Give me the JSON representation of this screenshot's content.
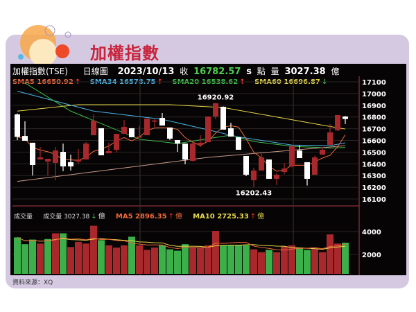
{
  "title": "加權指數",
  "header": {
    "name": "加權指數(TSE)",
    "period": "日線圖",
    "date": "2023/10/13",
    "close_label": "收",
    "close": "16782.57",
    "s": "s",
    "points_label": "點",
    "volume_label": "量",
    "volume": "3027.38",
    "volume_unit": "億"
  },
  "legend": [
    {
      "label": "SMA5 16650.92",
      "arrow": "↑",
      "color": "#f06a3a",
      "arrow_color": "#ff3030"
    },
    {
      "label": "SMA34 16578.75",
      "arrow": "↑",
      "color": "#4ab4e6",
      "arrow_color": "#ff3030"
    },
    {
      "label": "SMA20 16538.62",
      "arrow": "↑",
      "color": "#3cc04a",
      "arrow_color": "#ff3030"
    },
    {
      "label": "SMA60 16696.87",
      "arrow": "↓",
      "color": "#e6d84a",
      "arrow_color": "#3cc04a"
    }
  ],
  "volume_legend": {
    "title": "成交量",
    "vol_label": "成交量 3027.38",
    "vol_arrow": "↓",
    "unit": "億",
    "ma5_label": "MA5 2896.35",
    "ma5_arrow": "↑",
    "ma10_label": "MA10 2725.33",
    "ma10_arrow": "↑"
  },
  "source": "資料來源：XQ",
  "chart_data": [
    {
      "type": "candlestick",
      "ylim": [
        16050,
        17150
      ],
      "yticks": [
        17100,
        17000,
        16900,
        16800,
        16700,
        16600,
        16500,
        16400,
        16300,
        16200,
        16100
      ],
      "annotations": [
        {
          "index": 26,
          "text": "16920.92"
        },
        {
          "index": 31,
          "text": "16202.43"
        }
      ],
      "colors": {
        "up": "#a8282c",
        "down": "#ffffff"
      },
      "ohlc": [
        [
          16822,
          16830,
          16603,
          16630
        ],
        [
          16638,
          16763,
          16597,
          16597
        ],
        [
          16580,
          16580,
          16300,
          16390
        ],
        [
          16437,
          16544,
          16437,
          16455
        ],
        [
          16420,
          16443,
          16300,
          16443
        ],
        [
          16408,
          16544,
          16260,
          16514
        ],
        [
          16502,
          16573,
          16337,
          16378
        ],
        [
          16414,
          16479,
          16343,
          16378
        ],
        [
          16420,
          16526,
          16402,
          16437
        ],
        [
          16437,
          16585,
          16437,
          16573
        ],
        [
          16644,
          16822,
          16644,
          16769
        ],
        [
          16704,
          16704,
          16473,
          16473
        ],
        [
          16490,
          16580,
          16490,
          16508
        ],
        [
          16520,
          16656,
          16496,
          16656
        ],
        [
          16656,
          16775,
          16656,
          16715
        ],
        [
          16704,
          16704,
          16627,
          16627
        ],
        [
          16627,
          16722,
          16627,
          16633
        ],
        [
          16644,
          16786,
          16644,
          16786
        ],
        [
          16760,
          16780,
          16715,
          16770
        ],
        [
          16792,
          16834,
          16727,
          16727
        ],
        [
          16710,
          16710,
          16603,
          16615
        ],
        [
          16603,
          16603,
          16502,
          16573
        ],
        [
          16573,
          16573,
          16396,
          16437
        ],
        [
          16426,
          16580,
          16420,
          16573
        ],
        [
          16560,
          16644,
          16544,
          16580
        ],
        [
          16585,
          16804,
          16585,
          16804
        ],
        [
          16804,
          16920.92,
          16780,
          16917
        ],
        [
          16887,
          16890,
          16692,
          16692
        ],
        [
          16704,
          16751,
          16633,
          16633
        ],
        [
          16627,
          16627,
          16520,
          16520
        ],
        [
          16467,
          16467,
          16295,
          16307
        ],
        [
          16260,
          16367,
          16202.43,
          16343
        ],
        [
          16343,
          16496,
          16340,
          16455
        ],
        [
          16437,
          16437,
          16272,
          16272
        ],
        [
          16272,
          16320,
          16220,
          16307
        ],
        [
          16331,
          16408,
          16310,
          16360
        ],
        [
          16378,
          16560,
          16370,
          16550
        ],
        [
          16514,
          16560,
          16449,
          16449
        ],
        [
          16414,
          16414,
          16215,
          16272
        ],
        [
          16307,
          16470,
          16307,
          16455
        ],
        [
          16479,
          16540,
          16479,
          16520
        ],
        [
          16562,
          16740,
          16562,
          16668
        ],
        [
          16686,
          16816,
          16680,
          16816
        ],
        [
          16804,
          16808,
          16740,
          16782.57
        ]
      ],
      "lines": [
        {
          "name": "SMA60",
          "color": "#e6d84a",
          "points": [
            [
              0,
              16850
            ],
            [
              8,
              16905
            ],
            [
              20,
              16905
            ],
            [
              27,
              16880
            ],
            [
              34,
              16800
            ],
            [
              40,
              16730
            ],
            [
              43,
              16697
            ]
          ]
        },
        {
          "name": "SMA34",
          "color": "#4ab4e6",
          "points": [
            [
              0,
              17020
            ],
            [
              10,
              16850
            ],
            [
              19,
              16780
            ],
            [
              25,
              16690
            ],
            [
              29,
              16630
            ],
            [
              36,
              16560
            ],
            [
              41,
              16555
            ],
            [
              43,
              16579
            ]
          ]
        },
        {
          "name": "SMA20",
          "color": "#3cc04a",
          "points": [
            [
              1,
              17090
            ],
            [
              7,
              16850
            ],
            [
              16,
              16610
            ],
            [
              21,
              16573
            ],
            [
              25,
              16615
            ],
            [
              28,
              16645
            ],
            [
              31,
              16590
            ],
            [
              36,
              16550
            ],
            [
              41,
              16535
            ],
            [
              43,
              16539
            ]
          ]
        },
        {
          "color": "#c89a8a",
          "points": [
            [
              0,
              16250
            ],
            [
              25,
              16455
            ],
            [
              43,
              16555
            ]
          ]
        }
      ],
      "sma5_color": "#f06a3a"
    },
    {
      "type": "bar",
      "ylim": [
        0,
        4800
      ],
      "yticks": [
        4000,
        2000
      ],
      "colors": {
        "g": "#3cae4a",
        "r": "#a8282c"
      },
      "values": [
        3490,
        2900,
        3300,
        2950,
        3350,
        3850,
        3850,
        2650,
        3100,
        2950,
        4510,
        3250,
        2800,
        2600,
        2800,
        3550,
        2800,
        2400,
        2600,
        2800,
        2450,
        2330,
        2900,
        2600,
        2600,
        2800,
        4060,
        2800,
        2800,
        2800,
        2800,
        2450,
        2200,
        2400,
        2200,
        2700,
        2800,
        2600,
        2400,
        2500,
        2200,
        3755,
        2950,
        3027.38
      ],
      "bar_colors": [
        "g",
        "g",
        "g",
        "r",
        "g",
        "r",
        "g",
        "r",
        "r",
        "r",
        "r",
        "g",
        "r",
        "r",
        "r",
        "g",
        "r",
        "r",
        "r",
        "g",
        "g",
        "g",
        "g",
        "r",
        "r",
        "r",
        "r",
        "g",
        "g",
        "g",
        "g",
        "r",
        "r",
        "g",
        "r",
        "r",
        "r",
        "g",
        "g",
        "r",
        "r",
        "r",
        "r",
        "g"
      ],
      "ma_colors": {
        "ma5": "#f06a3a",
        "ma10": "#e6d84a"
      }
    }
  ]
}
